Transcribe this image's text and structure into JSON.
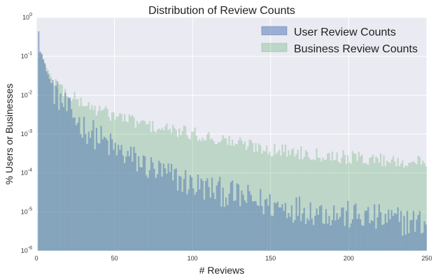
{
  "chart_data": {
    "type": "bar",
    "title": "Distribution of Review Counts",
    "xlabel": "# Reviews",
    "ylabel": "% Users or Businesses",
    "xlim": [
      0,
      250
    ],
    "ylim": [
      1e-06,
      1
    ],
    "yscale": "log",
    "bin_width": 1,
    "grid": true,
    "legend_position": "top-right",
    "x_ticks": [
      "0",
      "50",
      "100",
      "150",
      "200",
      "250"
    ],
    "y_ticks": [
      {
        "base": "10",
        "exp": "0"
      },
      {
        "base": "10",
        "exp": "-1"
      },
      {
        "base": "10",
        "exp": "-2"
      },
      {
        "base": "10",
        "exp": "-3"
      },
      {
        "base": "10",
        "exp": "-4"
      },
      {
        "base": "10",
        "exp": "-5"
      },
      {
        "base": "10",
        "exp": "-6"
      }
    ],
    "series": [
      {
        "name": "User Review Counts",
        "color": "#4c72b0",
        "opacity": 0.5,
        "model": {
          "points": [
            [
              1,
              0.5
            ],
            [
              2,
              0.15
            ],
            [
              5,
              0.06
            ],
            [
              10,
              0.015
            ],
            [
              20,
              0.004
            ],
            [
              30,
              0.0015
            ],
            [
              50,
              0.0004
            ],
            [
              75,
              0.00012
            ],
            [
              100,
              5e-05
            ],
            [
              150,
              1.5e-05
            ],
            [
              200,
              8e-06
            ],
            [
              249,
              5e-06
            ]
          ],
          "jitter": 0.38
        }
      },
      {
        "name": "Business Review Counts",
        "color": "#55a868",
        "opacity": 0.3,
        "model": {
          "points": [
            [
              3,
              0.12
            ],
            [
              5,
              0.06
            ],
            [
              10,
              0.025
            ],
            [
              20,
              0.01
            ],
            [
              30,
              0.006
            ],
            [
              40,
              0.004
            ],
            [
              50,
              0.003
            ],
            [
              75,
              0.0015
            ],
            [
              100,
              0.001
            ],
            [
              150,
              0.0004
            ],
            [
              200,
              0.00025
            ],
            [
              249,
              0.00018
            ]
          ],
          "jitter": 0.18
        }
      }
    ],
    "colors": {
      "plot_background": "#eaeaf2",
      "grid": "#ffffff",
      "user_series": "#4c72b0",
      "business_series": "#55a868"
    }
  }
}
